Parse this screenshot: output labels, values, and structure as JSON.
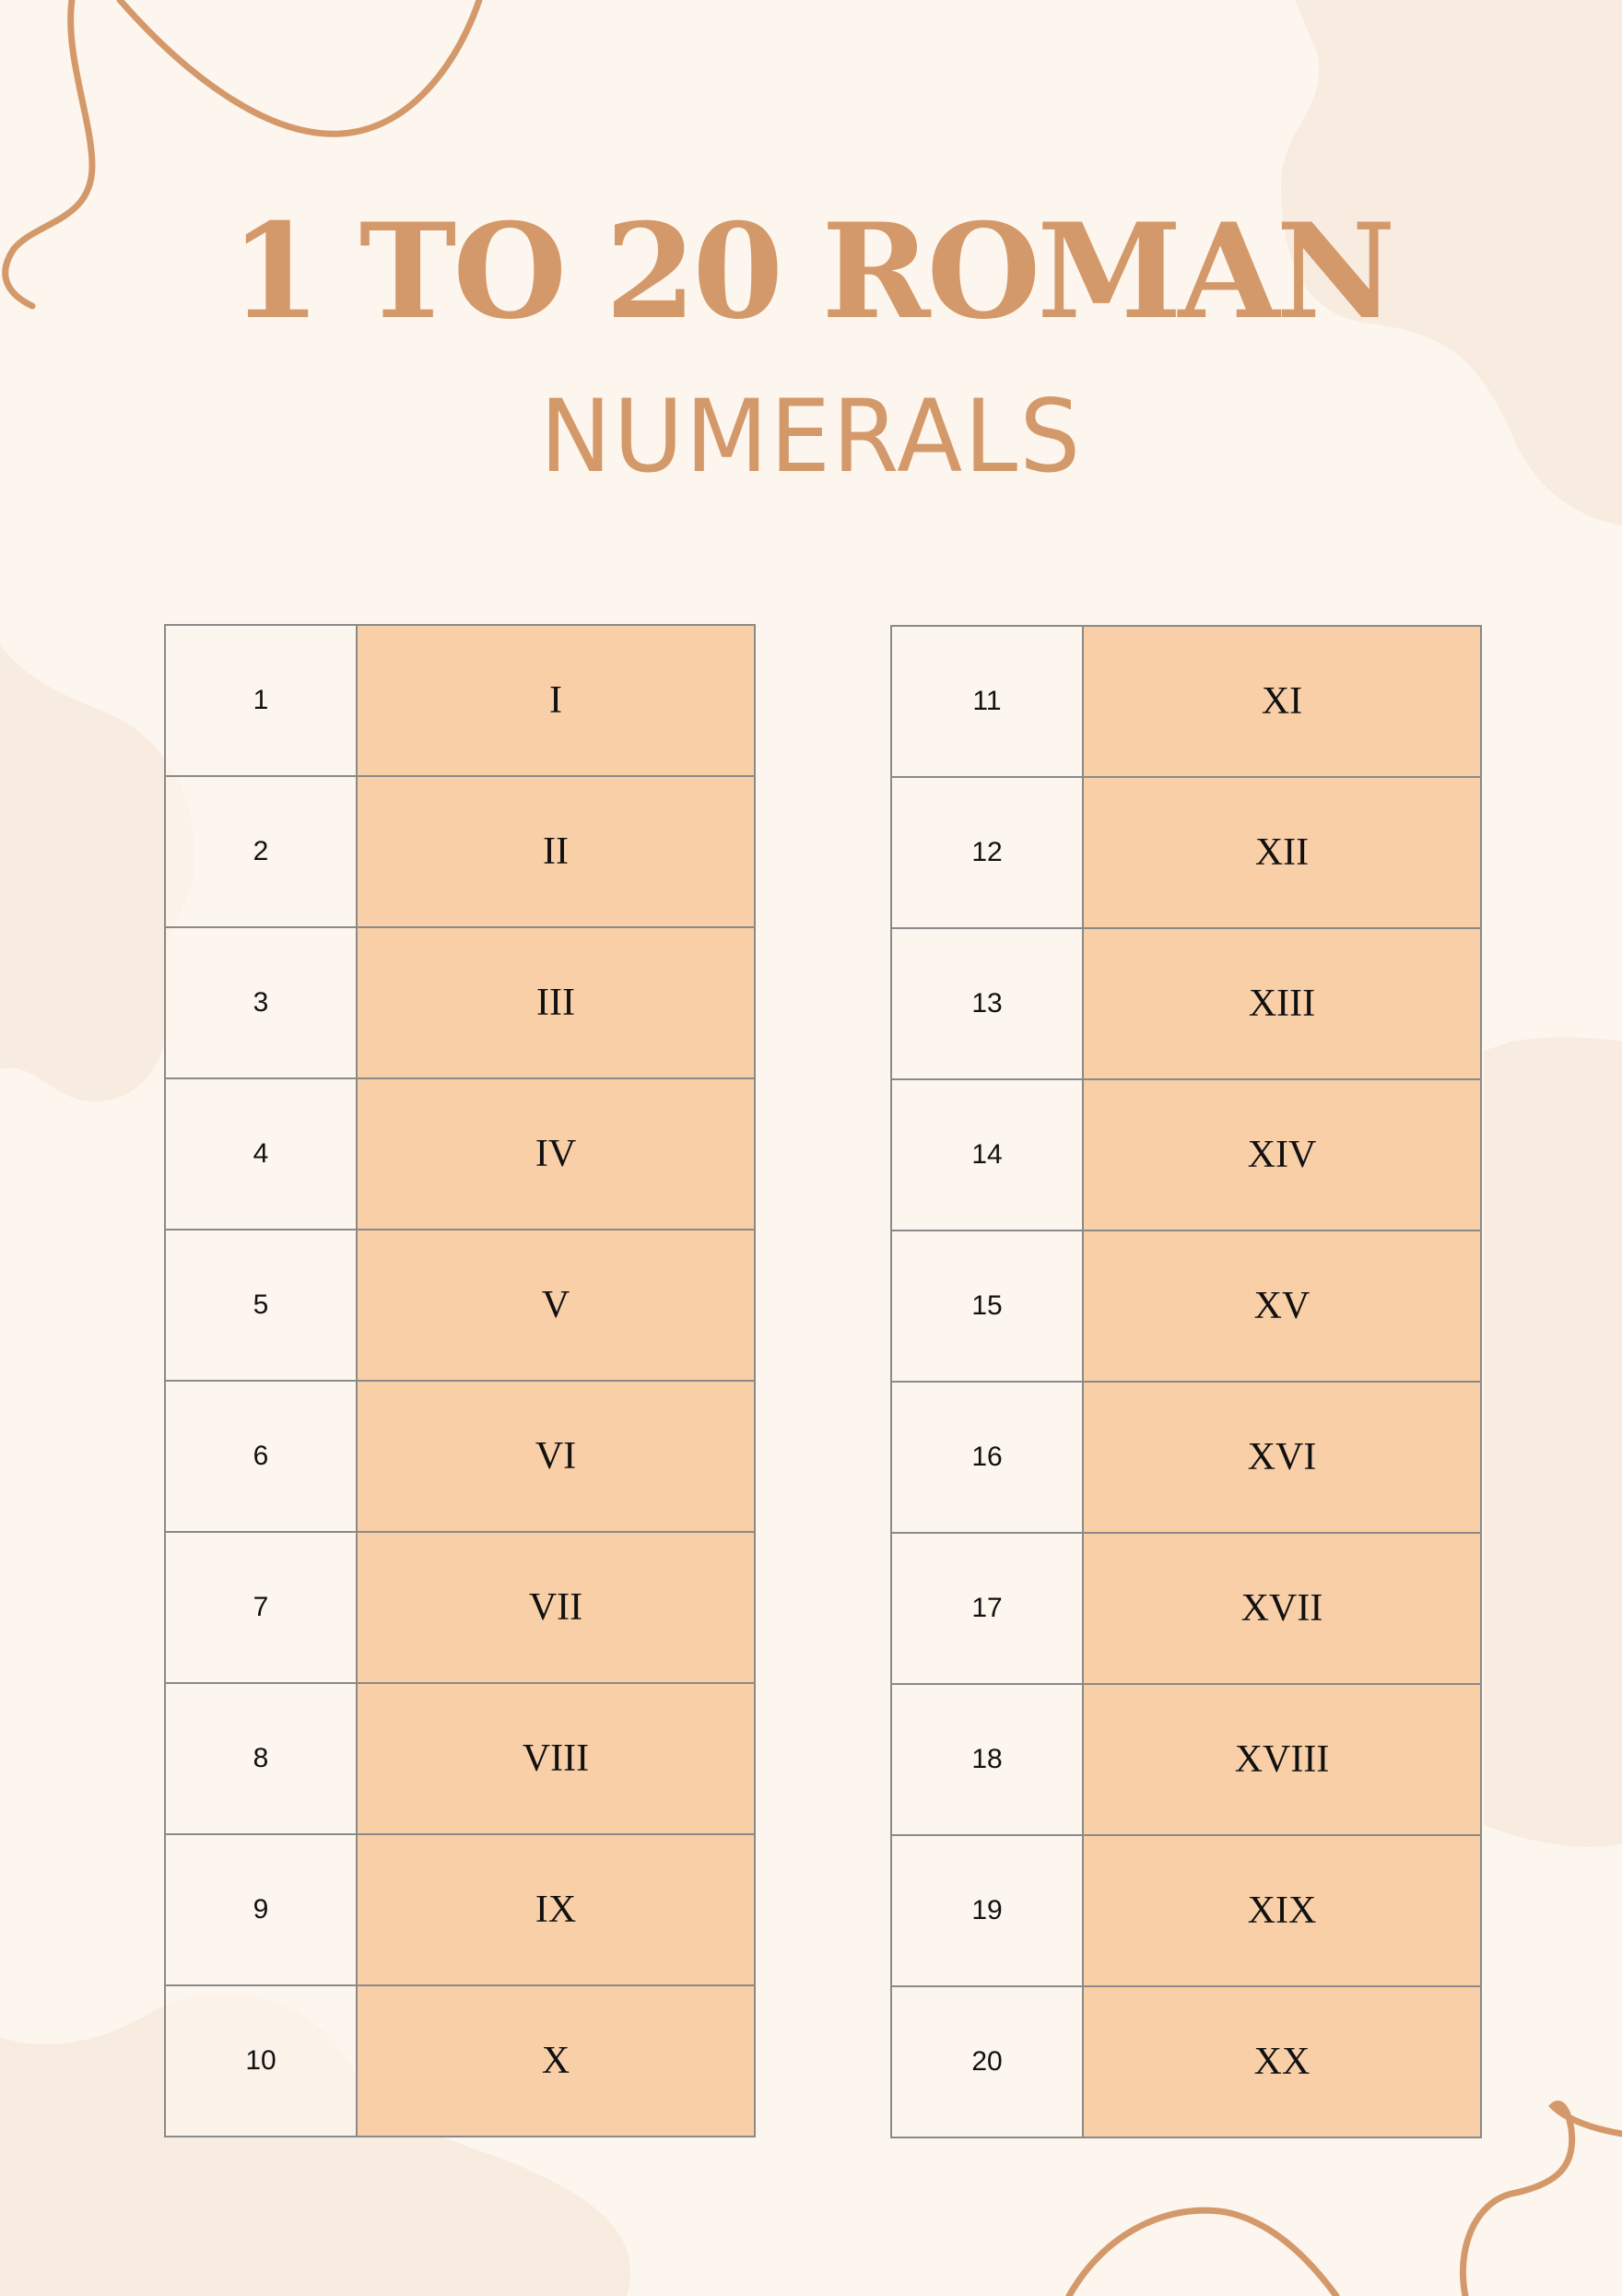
{
  "title": "1 TO 20 ROMAN",
  "subtitle": "NUMERALS",
  "colors": {
    "background": "#fdf6ee",
    "accent": "#d4996a",
    "cell_fill": "#f9cfa8",
    "blob": "#f8ece1"
  },
  "left_table": [
    {
      "number": "1",
      "roman": "I"
    },
    {
      "number": "2",
      "roman": "II"
    },
    {
      "number": "3",
      "roman": "III"
    },
    {
      "number": "4",
      "roman": "IV"
    },
    {
      "number": "5",
      "roman": "V"
    },
    {
      "number": "6",
      "roman": "VI"
    },
    {
      "number": "7",
      "roman": "VII"
    },
    {
      "number": "8",
      "roman": "VIII"
    },
    {
      "number": "9",
      "roman": "IX"
    },
    {
      "number": "10",
      "roman": "X"
    }
  ],
  "right_table": [
    {
      "number": "11",
      "roman": "XI"
    },
    {
      "number": "12",
      "roman": "XII"
    },
    {
      "number": "13",
      "roman": "XIII"
    },
    {
      "number": "14",
      "roman": "XIV"
    },
    {
      "number": "15",
      "roman": "XV"
    },
    {
      "number": "16",
      "roman": "XVI"
    },
    {
      "number": "17",
      "roman": "XVII"
    },
    {
      "number": "18",
      "roman": "XVIII"
    },
    {
      "number": "19",
      "roman": "XIX"
    },
    {
      "number": "20",
      "roman": "XX"
    }
  ]
}
